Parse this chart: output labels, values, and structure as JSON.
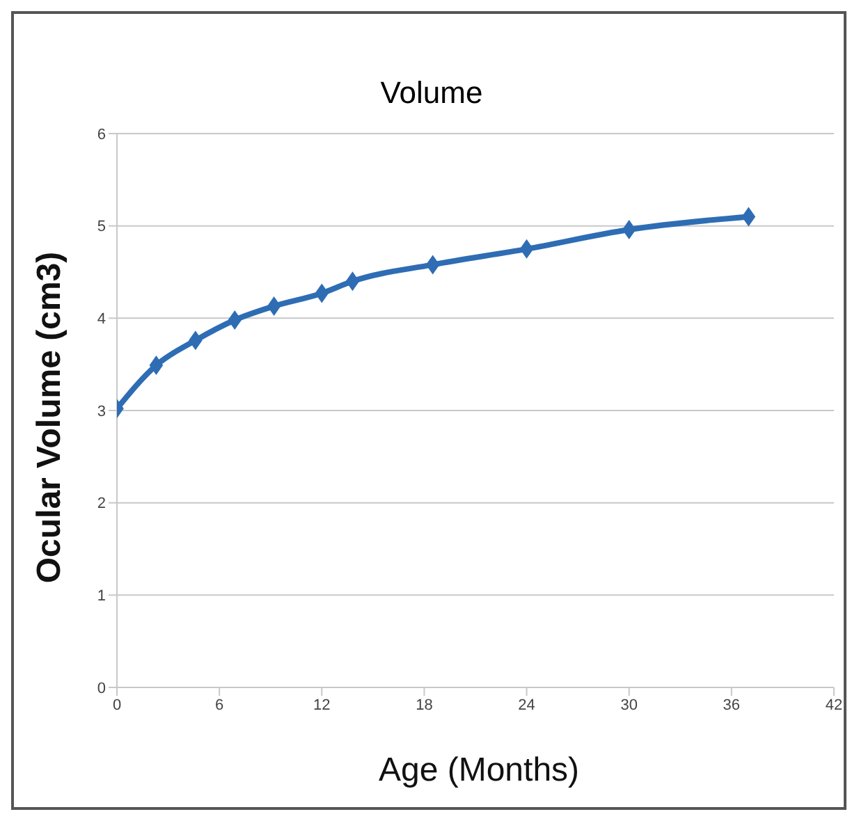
{
  "chart_data": {
    "type": "line",
    "title": "Volume",
    "xlabel": "Age (Months)",
    "ylabel": "Ocular Volume (cm3)",
    "x": [
      0,
      2.3,
      4.6,
      6.9,
      9.2,
      12,
      13.8,
      18.5,
      24,
      30,
      37
    ],
    "series": [
      {
        "color": "#2e6db4",
        "values": [
          3.02,
          3.49,
          3.76,
          3.98,
          4.13,
          4.27,
          4.4,
          4.58,
          4.75,
          4.96,
          5.1
        ]
      }
    ],
    "xlim": [
      0,
      42
    ],
    "xticks": [
      0,
      6,
      12,
      18,
      24,
      30,
      36,
      42
    ],
    "ylim": [
      0,
      6
    ],
    "yticks": [
      0,
      1,
      2,
      3,
      4,
      5,
      6
    ],
    "grid": "y",
    "legend": false,
    "marker": "diamond",
    "line_style": "solid"
  }
}
